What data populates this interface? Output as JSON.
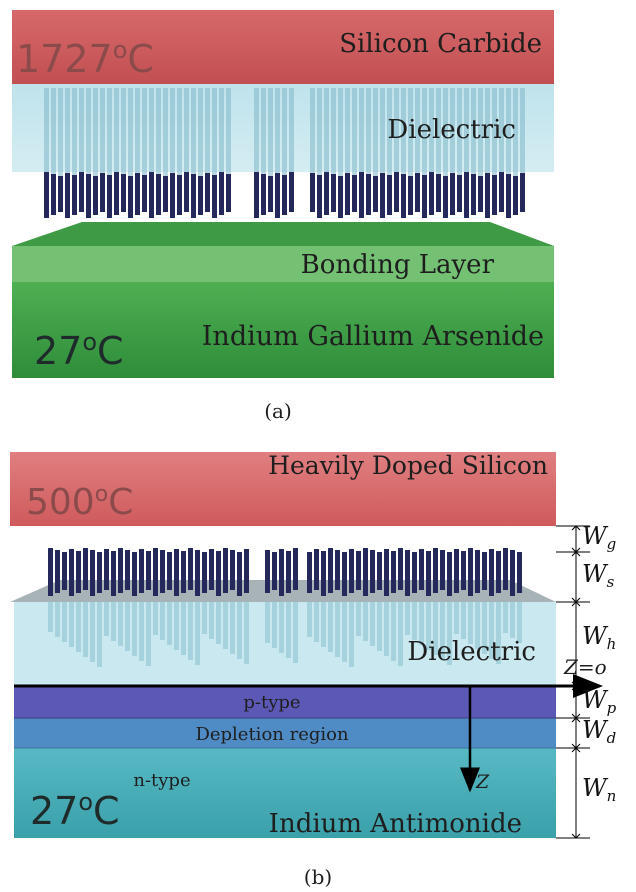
{
  "panel_a": {
    "caption": "(a)",
    "top_layer": "Silicon Carbide",
    "top_temp": "1727",
    "dielectric": "Dielectric",
    "bonding": "Bonding Layer",
    "bottom_layer": "Indium Gallium Arsenide",
    "bottom_temp": "27",
    "degree_unit": "C"
  },
  "panel_b": {
    "caption": "(b)",
    "top_layer": "Heavily Doped Silicon",
    "top_temp": "500",
    "dielectric": "Dielectric",
    "p_type": "p-type",
    "depletion": "Depletion region",
    "n_type": "n-type",
    "bottom_layer": "Indium Antimonide",
    "bottom_temp": "27",
    "degree_unit": "C",
    "axis_origin": "Z=o",
    "axis_label": "Z",
    "dims": [
      {
        "base": "W",
        "sub": "g"
      },
      {
        "base": "W",
        "sub": "s"
      },
      {
        "base": "W",
        "sub": "h"
      },
      {
        "base": "W",
        "sub": "p"
      },
      {
        "base": "W",
        "sub": "d"
      },
      {
        "base": "W",
        "sub": "n"
      }
    ]
  },
  "colors": {
    "hot_red": "#d96a6a",
    "dielectric": "#c6e6ee",
    "nanowire": "#23254f",
    "green": "#46a84d",
    "p_type": "#5b58b8",
    "depletion": "#4d8ec7",
    "n_type": "#4fb3c0",
    "axis_red": "#c8234a"
  }
}
